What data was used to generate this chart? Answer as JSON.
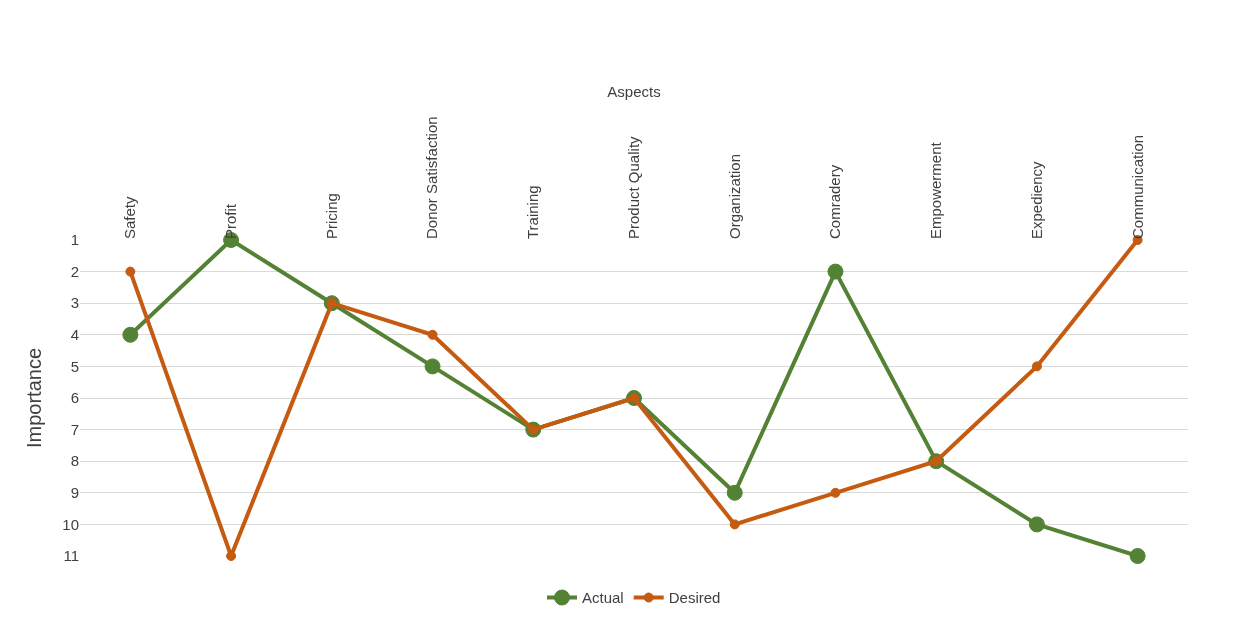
{
  "chart_data": {
    "type": "line",
    "xlabel": "Aspects",
    "ylabel": "Importance",
    "categories": [
      "Safety",
      "Profit",
      "Pricing",
      "Donor Satisfaction",
      "Training",
      "Product Quality",
      "Organization",
      "Comradery",
      "Empowerment",
      "Expediency",
      "Communication"
    ],
    "series": [
      {
        "name": "Actual",
        "color": "#548235",
        "values": [
          4,
          1,
          3,
          5,
          7,
          6,
          9,
          2,
          8,
          10,
          11
        ]
      },
      {
        "name": "Desired",
        "color": "#c55a11",
        "values": [
          2,
          11,
          3,
          4,
          7,
          6,
          10,
          9,
          8,
          5,
          1
        ]
      }
    ],
    "ylim": [
      11,
      1
    ],
    "yticks": [
      1,
      2,
      3,
      4,
      5,
      6,
      7,
      8,
      9,
      10,
      11
    ],
    "grid": "y",
    "legend": "bottom",
    "marker": "circle",
    "line_style": "solid"
  }
}
